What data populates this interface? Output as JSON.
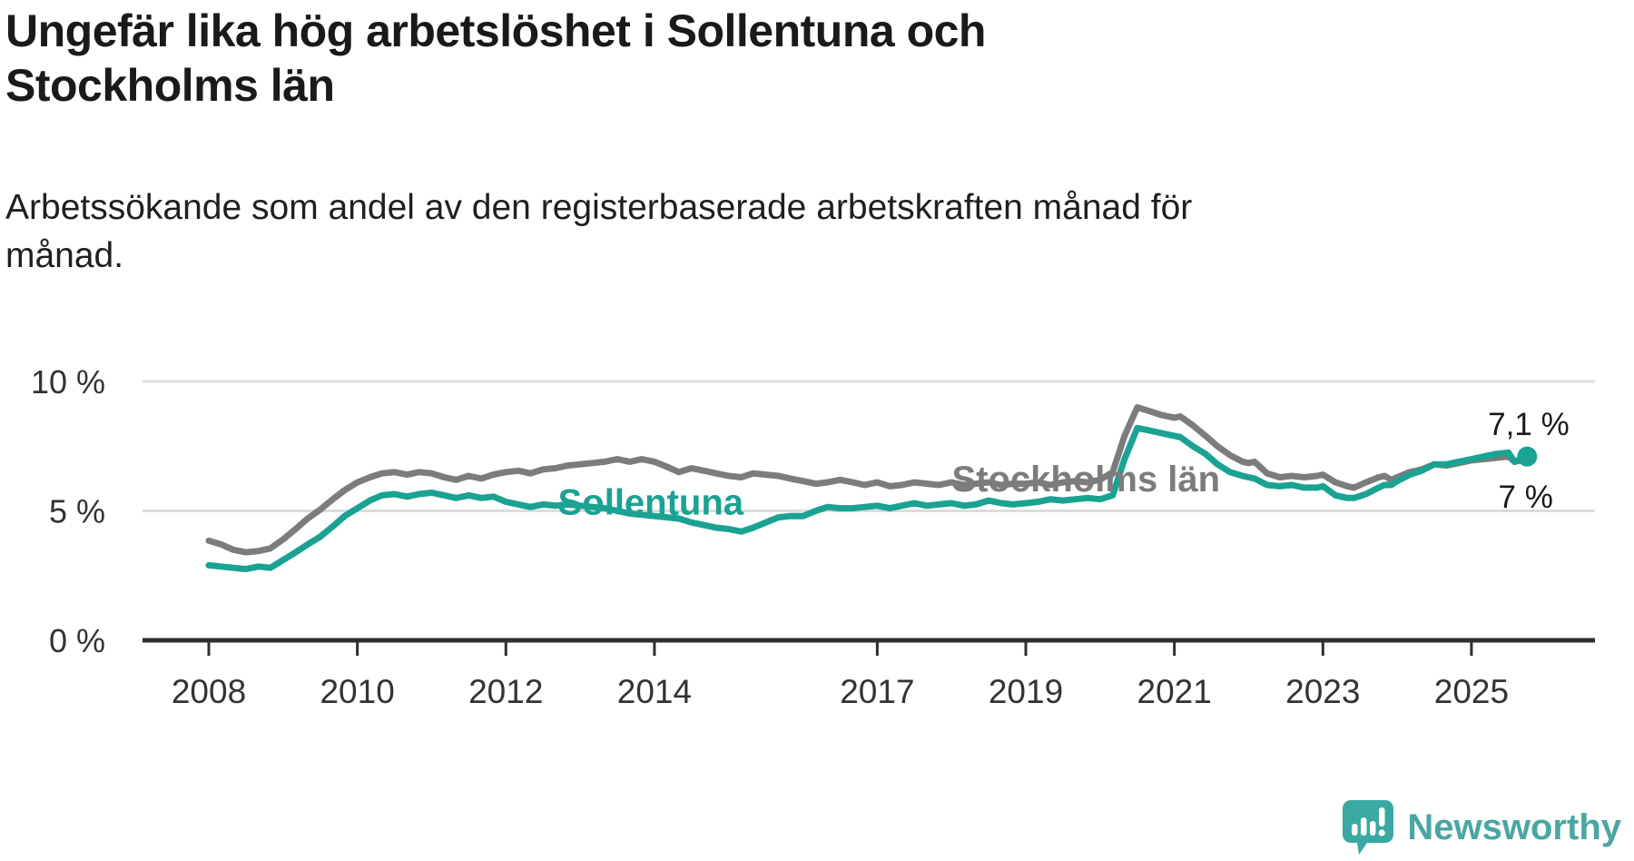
{
  "chart_data": {
    "type": "line",
    "title": "Ungefär lika hög arbetslöshet i Sollentuna och\nStockholms län",
    "subtitle": "Arbetssökande som andel av den registerbaserade arbetskraften månad för\nmånad.",
    "unit": "%",
    "legend_position": "inline",
    "x_axis": {
      "ticks": [
        2008,
        2010,
        2012,
        2014,
        2017,
        2019,
        2021,
        2023,
        2025
      ],
      "range": [
        2007.1,
        2026.7
      ]
    },
    "y_axis": {
      "ticks": [
        {
          "value": 10,
          "label": "10 %"
        },
        {
          "value": 5,
          "label": "5 %"
        },
        {
          "value": 0,
          "label": "0 %"
        }
      ],
      "range": [
        0,
        10.5
      ],
      "grid": true
    },
    "series": [
      {
        "name": "Stockholms län",
        "color": "#7c7c7c",
        "end_label": "7 %",
        "end_dot": false,
        "inline_label": {
          "x": 2019.81,
          "y": 6.25
        },
        "end_label_pos": {
          "x": 2025.73,
          "y": 5.55
        },
        "points": [
          [
            2008.0,
            3.85
          ],
          [
            2008.17,
            3.7
          ],
          [
            2008.33,
            3.5
          ],
          [
            2008.5,
            3.4
          ],
          [
            2008.67,
            3.45
          ],
          [
            2008.83,
            3.55
          ],
          [
            2009.0,
            3.9
          ],
          [
            2009.17,
            4.3
          ],
          [
            2009.33,
            4.7
          ],
          [
            2009.5,
            5.05
          ],
          [
            2009.67,
            5.45
          ],
          [
            2009.83,
            5.8
          ],
          [
            2010.0,
            6.1
          ],
          [
            2010.17,
            6.3
          ],
          [
            2010.33,
            6.45
          ],
          [
            2010.5,
            6.5
          ],
          [
            2010.67,
            6.4
          ],
          [
            2010.83,
            6.5
          ],
          [
            2011.0,
            6.45
          ],
          [
            2011.17,
            6.3
          ],
          [
            2011.33,
            6.2
          ],
          [
            2011.5,
            6.35
          ],
          [
            2011.67,
            6.25
          ],
          [
            2011.83,
            6.4
          ],
          [
            2012.0,
            6.5
          ],
          [
            2012.17,
            6.55
          ],
          [
            2012.33,
            6.45
          ],
          [
            2012.5,
            6.6
          ],
          [
            2012.67,
            6.65
          ],
          [
            2012.83,
            6.75
          ],
          [
            2013.0,
            6.8
          ],
          [
            2013.17,
            6.85
          ],
          [
            2013.33,
            6.9
          ],
          [
            2013.5,
            7.0
          ],
          [
            2013.67,
            6.9
          ],
          [
            2013.83,
            7.0
          ],
          [
            2014.0,
            6.9
          ],
          [
            2014.17,
            6.7
          ],
          [
            2014.33,
            6.5
          ],
          [
            2014.5,
            6.65
          ],
          [
            2014.67,
            6.55
          ],
          [
            2014.83,
            6.45
          ],
          [
            2015.0,
            6.35
          ],
          [
            2015.17,
            6.3
          ],
          [
            2015.33,
            6.45
          ],
          [
            2015.5,
            6.4
          ],
          [
            2015.67,
            6.35
          ],
          [
            2015.83,
            6.25
          ],
          [
            2016.0,
            6.15
          ],
          [
            2016.17,
            6.05
          ],
          [
            2016.33,
            6.1
          ],
          [
            2016.5,
            6.2
          ],
          [
            2016.67,
            6.1
          ],
          [
            2016.83,
            6.0
          ],
          [
            2017.0,
            6.1
          ],
          [
            2017.17,
            5.95
          ],
          [
            2017.33,
            6.0
          ],
          [
            2017.5,
            6.1
          ],
          [
            2017.67,
            6.05
          ],
          [
            2017.83,
            6.0
          ],
          [
            2018.0,
            6.1
          ],
          [
            2018.17,
            6.0
          ],
          [
            2018.33,
            6.05
          ],
          [
            2018.5,
            6.1
          ],
          [
            2018.67,
            6.0
          ],
          [
            2018.83,
            6.05
          ],
          [
            2019.0,
            6.05
          ],
          [
            2019.17,
            6.1
          ],
          [
            2019.33,
            6.0
          ],
          [
            2019.5,
            6.1
          ],
          [
            2019.67,
            6.15
          ],
          [
            2019.83,
            6.1
          ],
          [
            2020.0,
            6.2
          ],
          [
            2020.17,
            6.5
          ],
          [
            2020.33,
            7.9
          ],
          [
            2020.5,
            9.0
          ],
          [
            2020.67,
            8.85
          ],
          [
            2020.83,
            8.7
          ],
          [
            2021.0,
            8.6
          ],
          [
            2021.08,
            8.65
          ],
          [
            2021.25,
            8.3
          ],
          [
            2021.42,
            7.9
          ],
          [
            2021.58,
            7.5
          ],
          [
            2021.75,
            7.15
          ],
          [
            2021.92,
            6.9
          ],
          [
            2022.0,
            6.85
          ],
          [
            2022.08,
            6.9
          ],
          [
            2022.25,
            6.45
          ],
          [
            2022.42,
            6.3
          ],
          [
            2022.58,
            6.35
          ],
          [
            2022.75,
            6.3
          ],
          [
            2022.92,
            6.35
          ],
          [
            2023.0,
            6.4
          ],
          [
            2023.17,
            6.1
          ],
          [
            2023.33,
            5.95
          ],
          [
            2023.42,
            5.9
          ],
          [
            2023.58,
            6.1
          ],
          [
            2023.75,
            6.3
          ],
          [
            2023.83,
            6.35
          ],
          [
            2023.92,
            6.2
          ],
          [
            2024.0,
            6.3
          ],
          [
            2024.17,
            6.5
          ],
          [
            2024.33,
            6.6
          ],
          [
            2024.5,
            6.8
          ],
          [
            2024.67,
            6.75
          ],
          [
            2024.83,
            6.85
          ],
          [
            2025.0,
            6.95
          ],
          [
            2025.17,
            7.0
          ],
          [
            2025.33,
            7.05
          ],
          [
            2025.5,
            7.1
          ],
          [
            2025.58,
            6.9
          ],
          [
            2025.75,
            7.0
          ]
        ]
      },
      {
        "name": "Sollentuna",
        "color": "#1aa292",
        "end_label": "7,1 %",
        "end_dot": true,
        "inline_label": {
          "x": 2013.95,
          "y": 5.35
        },
        "end_label_pos": {
          "x": 2025.77,
          "y": 8.35
        },
        "points": [
          [
            2008.0,
            2.9
          ],
          [
            2008.17,
            2.85
          ],
          [
            2008.33,
            2.8
          ],
          [
            2008.5,
            2.75
          ],
          [
            2008.67,
            2.85
          ],
          [
            2008.83,
            2.8
          ],
          [
            2009.0,
            3.1
          ],
          [
            2009.17,
            3.4
          ],
          [
            2009.33,
            3.7
          ],
          [
            2009.5,
            4.0
          ],
          [
            2009.67,
            4.4
          ],
          [
            2009.83,
            4.8
          ],
          [
            2010.0,
            5.1
          ],
          [
            2010.17,
            5.4
          ],
          [
            2010.33,
            5.6
          ],
          [
            2010.5,
            5.65
          ],
          [
            2010.67,
            5.55
          ],
          [
            2010.83,
            5.65
          ],
          [
            2011.0,
            5.7
          ],
          [
            2011.17,
            5.6
          ],
          [
            2011.33,
            5.5
          ],
          [
            2011.5,
            5.6
          ],
          [
            2011.67,
            5.5
          ],
          [
            2011.83,
            5.55
          ],
          [
            2012.0,
            5.35
          ],
          [
            2012.17,
            5.25
          ],
          [
            2012.33,
            5.15
          ],
          [
            2012.5,
            5.25
          ],
          [
            2012.67,
            5.2
          ],
          [
            2012.83,
            5.25
          ],
          [
            2013.0,
            5.2
          ],
          [
            2013.17,
            5.15
          ],
          [
            2013.33,
            5.1
          ],
          [
            2013.5,
            5.0
          ],
          [
            2013.67,
            4.9
          ],
          [
            2013.83,
            4.85
          ],
          [
            2014.0,
            4.8
          ],
          [
            2014.17,
            4.75
          ],
          [
            2014.33,
            4.7
          ],
          [
            2014.5,
            4.55
          ],
          [
            2014.67,
            4.45
          ],
          [
            2014.83,
            4.35
          ],
          [
            2015.0,
            4.3
          ],
          [
            2015.17,
            4.2
          ],
          [
            2015.33,
            4.35
          ],
          [
            2015.5,
            4.55
          ],
          [
            2015.67,
            4.75
          ],
          [
            2015.83,
            4.8
          ],
          [
            2016.0,
            4.8
          ],
          [
            2016.17,
            5.0
          ],
          [
            2016.33,
            5.15
          ],
          [
            2016.5,
            5.1
          ],
          [
            2016.67,
            5.1
          ],
          [
            2016.83,
            5.15
          ],
          [
            2017.0,
            5.2
          ],
          [
            2017.17,
            5.1
          ],
          [
            2017.33,
            5.2
          ],
          [
            2017.5,
            5.3
          ],
          [
            2017.67,
            5.2
          ],
          [
            2017.83,
            5.25
          ],
          [
            2018.0,
            5.3
          ],
          [
            2018.17,
            5.2
          ],
          [
            2018.33,
            5.25
          ],
          [
            2018.5,
            5.4
          ],
          [
            2018.67,
            5.3
          ],
          [
            2018.83,
            5.25
          ],
          [
            2019.0,
            5.3
          ],
          [
            2019.17,
            5.35
          ],
          [
            2019.33,
            5.45
          ],
          [
            2019.5,
            5.4
          ],
          [
            2019.67,
            5.45
          ],
          [
            2019.83,
            5.5
          ],
          [
            2020.0,
            5.45
          ],
          [
            2020.17,
            5.6
          ],
          [
            2020.33,
            7.0
          ],
          [
            2020.5,
            8.2
          ],
          [
            2020.67,
            8.1
          ],
          [
            2020.83,
            8.0
          ],
          [
            2021.0,
            7.9
          ],
          [
            2021.08,
            7.85
          ],
          [
            2021.25,
            7.5
          ],
          [
            2021.42,
            7.2
          ],
          [
            2021.58,
            6.8
          ],
          [
            2021.75,
            6.5
          ],
          [
            2021.92,
            6.35
          ],
          [
            2022.0,
            6.3
          ],
          [
            2022.08,
            6.25
          ],
          [
            2022.25,
            6.0
          ],
          [
            2022.42,
            5.95
          ],
          [
            2022.58,
            6.0
          ],
          [
            2022.75,
            5.9
          ],
          [
            2022.92,
            5.9
          ],
          [
            2023.0,
            5.95
          ],
          [
            2023.17,
            5.6
          ],
          [
            2023.33,
            5.5
          ],
          [
            2023.42,
            5.5
          ],
          [
            2023.58,
            5.65
          ],
          [
            2023.75,
            5.9
          ],
          [
            2023.83,
            6.0
          ],
          [
            2023.92,
            6.0
          ],
          [
            2024.0,
            6.15
          ],
          [
            2024.17,
            6.4
          ],
          [
            2024.33,
            6.55
          ],
          [
            2024.5,
            6.8
          ],
          [
            2024.67,
            6.8
          ],
          [
            2024.83,
            6.9
          ],
          [
            2025.0,
            7.0
          ],
          [
            2025.17,
            7.1
          ],
          [
            2025.33,
            7.2
          ],
          [
            2025.5,
            7.25
          ],
          [
            2025.58,
            6.9
          ],
          [
            2025.75,
            7.1
          ]
        ]
      }
    ]
  },
  "footer": {
    "brand": "Newsworthy"
  },
  "colors": {
    "accent_teal": "#1aa292",
    "series_gray": "#7c7c7c",
    "axis": "#2e2e2e",
    "grid": "#dcdcdc",
    "text": "#1a1a1a",
    "tick_text": "#333333",
    "logo_teal": "#4aa6a2",
    "logo_icon_teal": "#3aa8a3"
  }
}
